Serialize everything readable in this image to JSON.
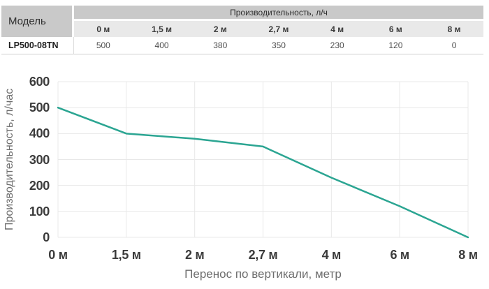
{
  "table": {
    "model_header": "Модель",
    "group_header": "Производительность, л/ч",
    "columns": [
      "0 м",
      "1,5 м",
      "2 м",
      "2,7 м",
      "4 м",
      "6 м",
      "8 м"
    ],
    "row": {
      "model": "LP500-08TN",
      "values": [
        "500",
        "400",
        "380",
        "350",
        "230",
        "120",
        "0"
      ]
    }
  },
  "chart_data": {
    "type": "line",
    "categories": [
      "0 м",
      "1,5 м",
      "2 м",
      "2,7 м",
      "4 м",
      "6 м",
      "8 м"
    ],
    "values": [
      500,
      400,
      380,
      350,
      230,
      120,
      0
    ],
    "title": "",
    "xlabel": "Перенос по вертикали, метр",
    "ylabel": "Производительность, л/час",
    "ylim": [
      0,
      600
    ],
    "ytick_step": 100,
    "grid": true,
    "legend": "none"
  },
  "colors": {
    "line": "#2ba592",
    "gridline": "#e8e8e8",
    "tick_text": "#3b3b3b",
    "axis_title_text": "#6e6e6e",
    "header_bg": "#c9c9c9",
    "subheader_bg": "#e9e9e9",
    "table_border": "#d0d0d0"
  }
}
